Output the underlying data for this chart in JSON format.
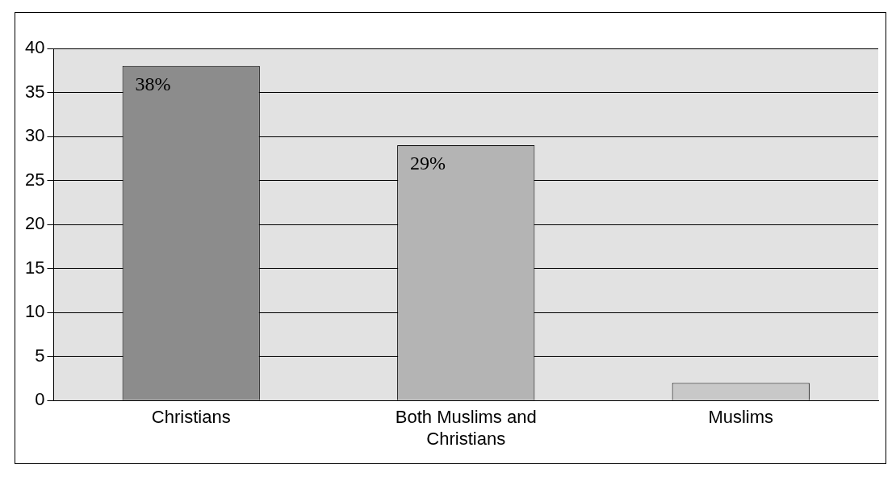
{
  "chart_data": {
    "type": "bar",
    "categories": [
      "Christians",
      "Both Muslims and Christians",
      "Muslims"
    ],
    "values": [
      38,
      29,
      2
    ],
    "colors": [
      "#8c8c8c",
      "#b4b4b4",
      "#c8c8c8"
    ],
    "value_labels": [
      "38%",
      "29%",
      null
    ],
    "ylim": [
      0,
      40
    ],
    "yticks": [
      0,
      5,
      10,
      15,
      20,
      25,
      30,
      35,
      40
    ],
    "grid": "y",
    "legend": false
  }
}
